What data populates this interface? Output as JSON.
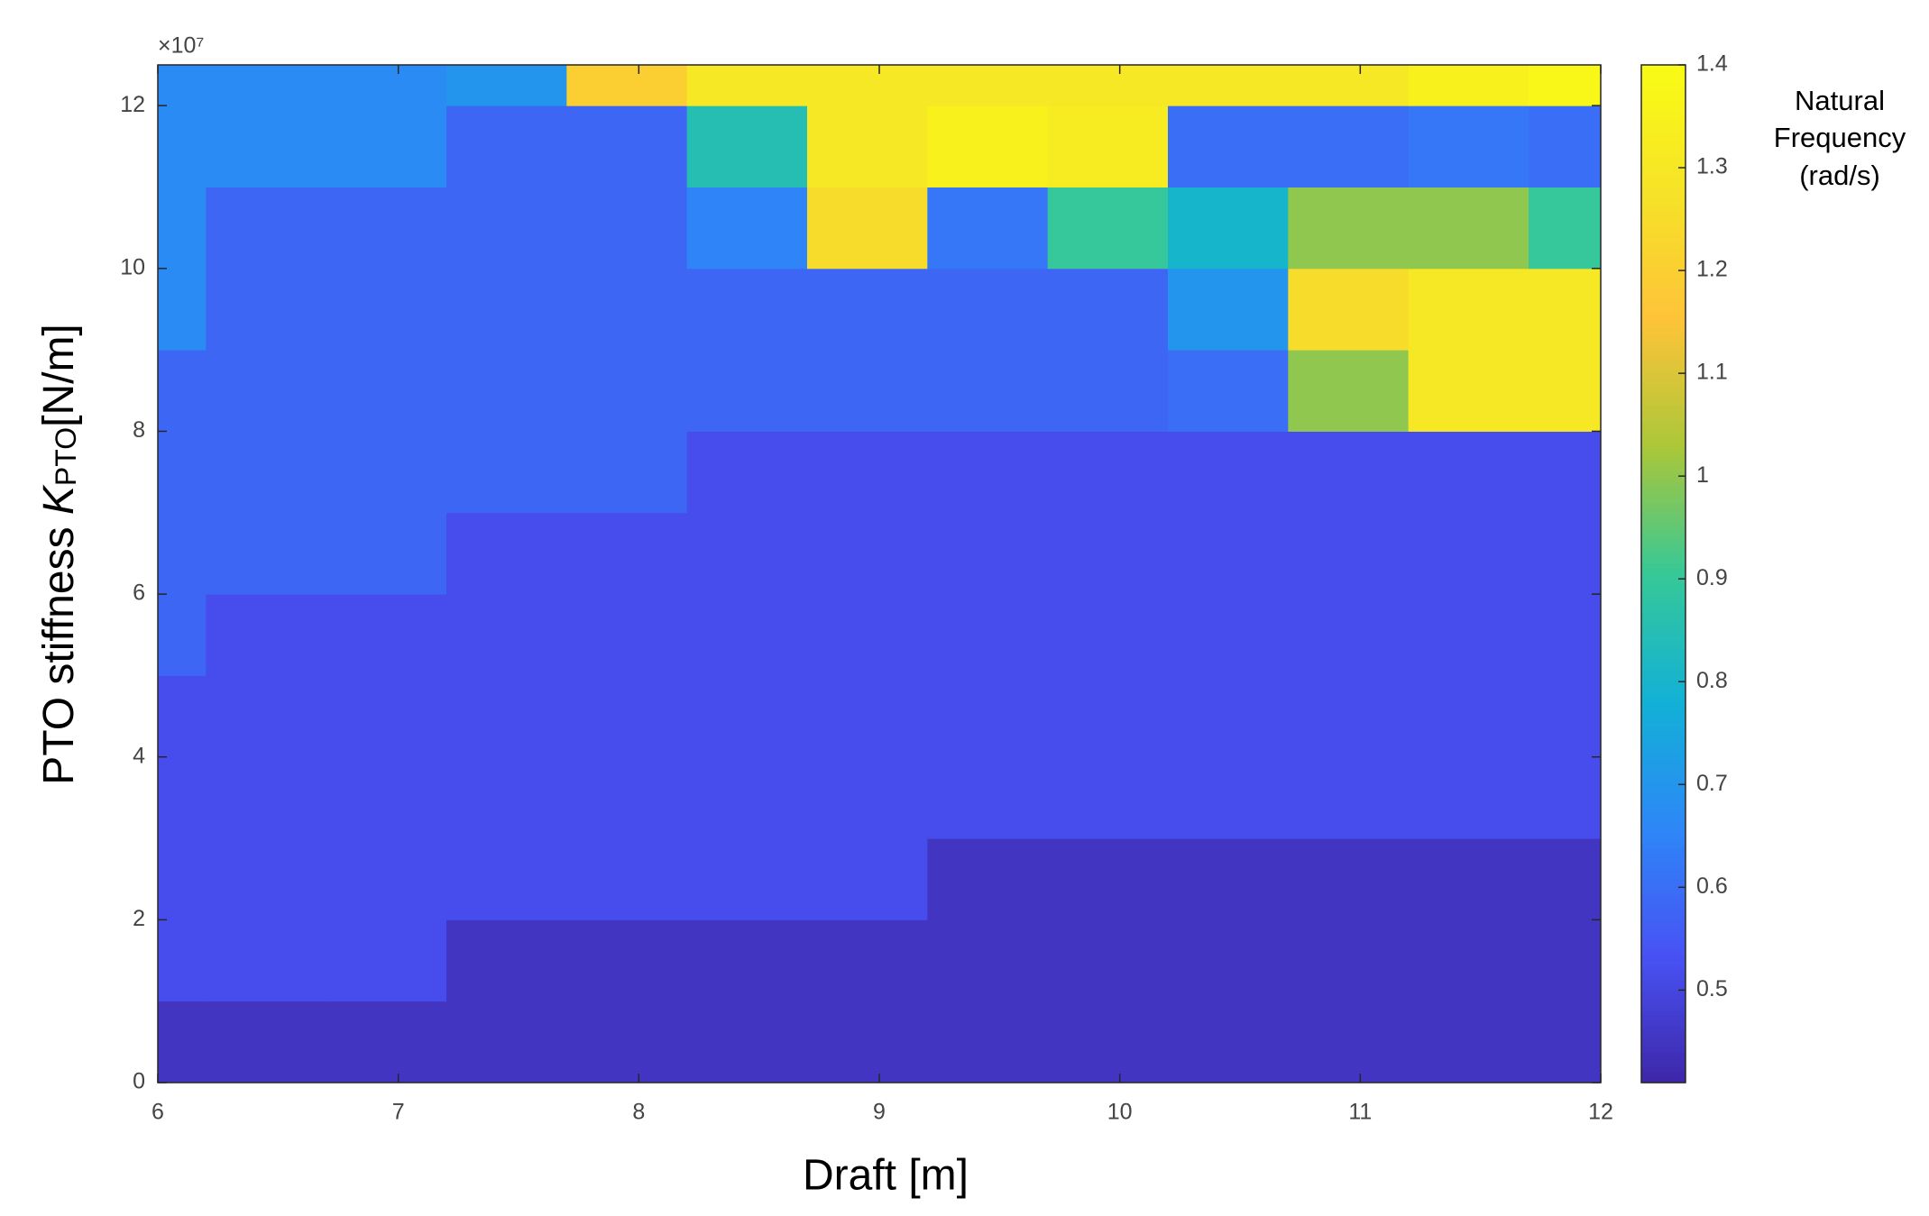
{
  "chart_data": {
    "type": "heatmap",
    "xlabel": "Draft [m]",
    "ylabel_parts": [
      "PTO stiffness ",
      "K",
      "PTO",
      "[N/m]"
    ],
    "y_exponent_label": "×10⁷",
    "colorbar_label": [
      "Natural",
      "Frequency",
      "(rad/s)"
    ],
    "colormap": "parula",
    "xlim": [
      6,
      12
    ],
    "xticks": [
      6,
      7,
      8,
      9,
      10,
      11,
      12
    ],
    "ylim": [
      0,
      12.5
    ],
    "yticks": [
      0,
      2,
      4,
      6,
      8,
      10,
      12
    ],
    "clim": [
      0.41,
      1.4
    ],
    "cticks": [
      0.5,
      0.6,
      0.7,
      0.8,
      0.9,
      1,
      1.1,
      1.2,
      1.3,
      1.4
    ],
    "x_bins": [
      6,
      6.2,
      6.7,
      7.2,
      7.7,
      8.2,
      8.7,
      9.2,
      9.7,
      10.2,
      10.7,
      11.2,
      11.7,
      12
    ],
    "y_bins": [
      0,
      1,
      2,
      3,
      4,
      5,
      6,
      7,
      8,
      9,
      10,
      11,
      12,
      12.5
    ],
    "z": [
      [
        0.45,
        0.45,
        0.45,
        0.45,
        0.45,
        0.45,
        0.45,
        0.45,
        0.45,
        0.45,
        0.45,
        0.45,
        0.45
      ],
      [
        0.52,
        0.52,
        0.52,
        0.45,
        0.45,
        0.45,
        0.45,
        0.45,
        0.45,
        0.45,
        0.45,
        0.45,
        0.45
      ],
      [
        0.52,
        0.52,
        0.52,
        0.52,
        0.52,
        0.52,
        0.52,
        0.45,
        0.45,
        0.45,
        0.45,
        0.45,
        0.45
      ],
      [
        0.52,
        0.52,
        0.52,
        0.52,
        0.52,
        0.52,
        0.52,
        0.52,
        0.52,
        0.52,
        0.52,
        0.52,
        0.52
      ],
      [
        0.52,
        0.52,
        0.52,
        0.52,
        0.52,
        0.52,
        0.52,
        0.52,
        0.52,
        0.52,
        0.52,
        0.52,
        0.52
      ],
      [
        0.58,
        0.52,
        0.52,
        0.52,
        0.52,
        0.52,
        0.52,
        0.52,
        0.52,
        0.52,
        0.52,
        0.52,
        0.52
      ],
      [
        0.58,
        0.58,
        0.58,
        0.52,
        0.52,
        0.52,
        0.52,
        0.52,
        0.52,
        0.52,
        0.52,
        0.52,
        0.52
      ],
      [
        0.58,
        0.58,
        0.58,
        0.58,
        0.58,
        0.52,
        0.52,
        0.52,
        0.52,
        0.52,
        0.52,
        0.52,
        0.52
      ],
      [
        0.58,
        0.58,
        0.58,
        0.58,
        0.58,
        0.58,
        0.58,
        0.58,
        0.58,
        0.6,
        1.0,
        1.3,
        1.3
      ],
      [
        0.67,
        0.58,
        0.58,
        0.58,
        0.58,
        0.58,
        0.58,
        0.58,
        0.58,
        0.7,
        1.25,
        1.3,
        1.3
      ],
      [
        0.67,
        0.58,
        0.58,
        0.58,
        0.58,
        0.65,
        1.25,
        0.62,
        0.9,
        0.8,
        1.0,
        1.0,
        0.9
      ],
      [
        0.67,
        0.67,
        0.67,
        0.58,
        0.58,
        0.85,
        1.3,
        1.35,
        1.32,
        0.6,
        0.6,
        0.62,
        0.6
      ],
      [
        0.67,
        0.67,
        0.67,
        0.7,
        1.2,
        1.3,
        1.3,
        1.3,
        1.3,
        1.3,
        1.3,
        1.35,
        1.38
      ]
    ]
  }
}
